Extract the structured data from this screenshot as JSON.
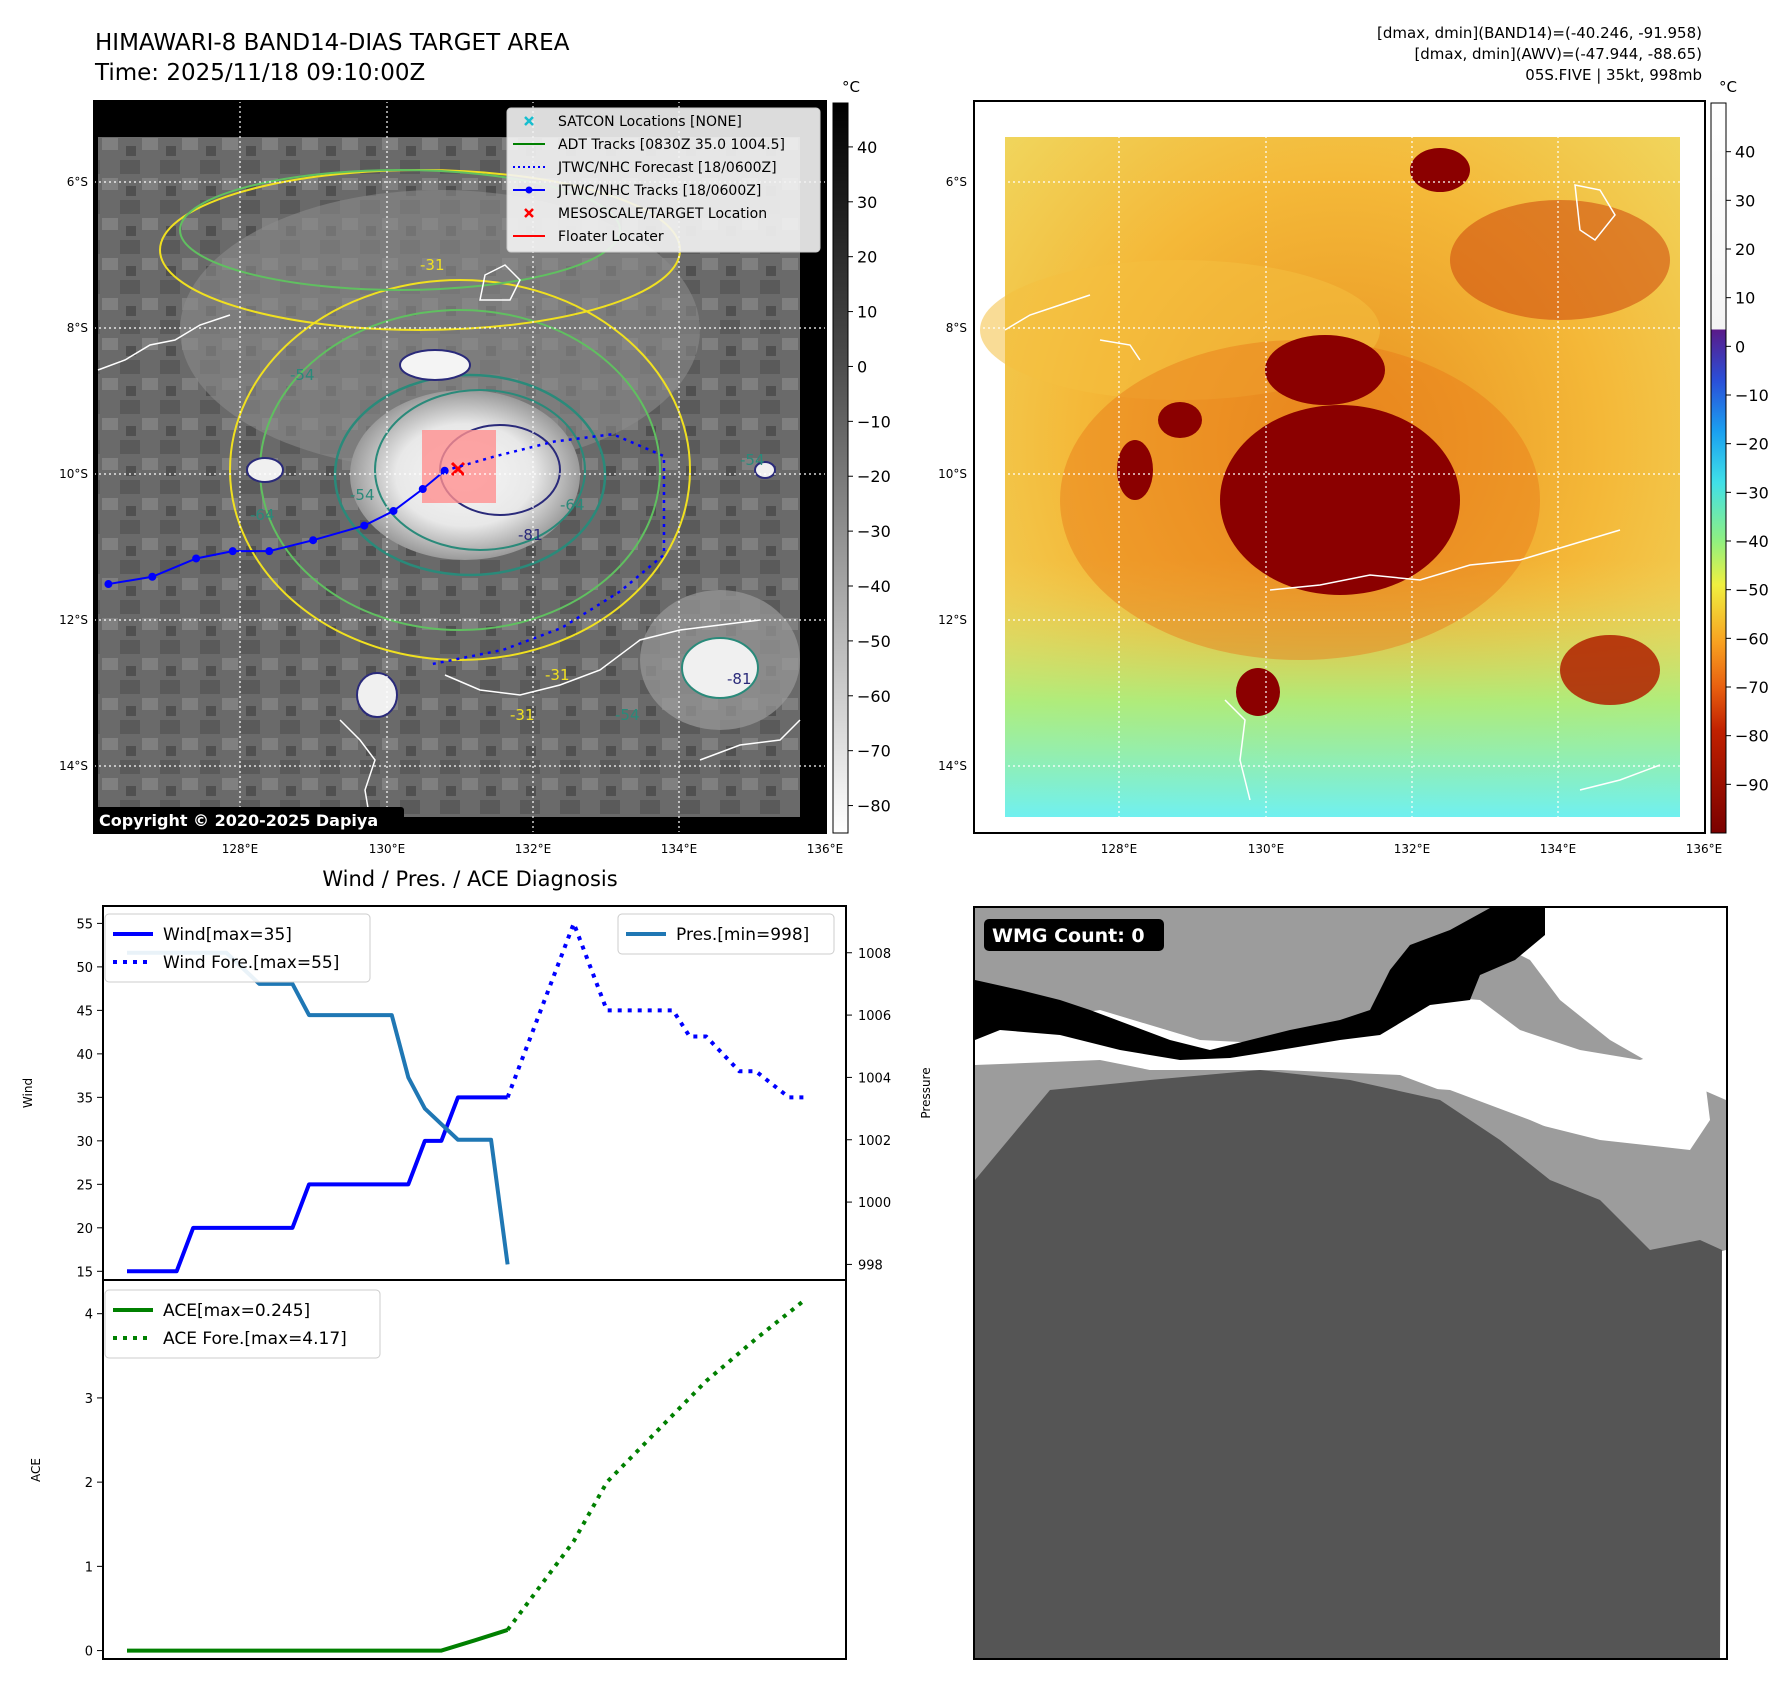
{
  "header": {
    "title": "HIMAWARI-8 BAND14-DIAS TARGET AREA",
    "time": "Time: 2025/11/18 09:10:00Z",
    "stats_band14": "[dmax, dmin](BAND14)=(-40.246, -91.958)",
    "stats_awv": "[dmax, dmin](AWV)=(-47.944, -88.65)",
    "storm_info": "05S.FIVE | 35kt, 998mb"
  },
  "map_axes": {
    "lon_ticks": [
      "128°E",
      "130°E",
      "132°E",
      "134°E",
      "136°E"
    ],
    "lat_ticks": [
      "6°S",
      "8°S",
      "10°S",
      "12°S",
      "14°S"
    ]
  },
  "left_map": {
    "copyright": "Copyright © 2020-2025 Dapiya",
    "legend": [
      {
        "label": "SATCON Locations [NONE]",
        "color": "#17becf",
        "icon": "x-marker-icon"
      },
      {
        "label": "ADT Tracks [0830Z 35.0 1004.5]",
        "color": "#008000",
        "icon": "solid-line-icon"
      },
      {
        "label": "JTWC/NHC Forecast [18/0600Z]",
        "color": "#0000ff",
        "icon": "dotted-line-icon"
      },
      {
        "label": "JTWC/NHC Tracks [18/0600Z]",
        "color": "#0000ff",
        "icon": "line-dot-icon"
      },
      {
        "label": "MESOSCALE/TARGET Location",
        "color": "#ff0000",
        "icon": "x-marker-icon"
      },
      {
        "label": "Floater Locater",
        "color": "#ff0000",
        "icon": "solid-line-icon"
      }
    ],
    "contour_labels": [
      "-54",
      "-81",
      "-64",
      "-31",
      "-54",
      "-31",
      "-54",
      "-31",
      "-54",
      "-81",
      "-64"
    ],
    "track_lonlat": [
      [
        126.2,
        -11.5
      ],
      [
        126.8,
        -11.4
      ],
      [
        127.4,
        -11.15
      ],
      [
        127.9,
        -11.05
      ],
      [
        128.4,
        -11.05
      ],
      [
        129.0,
        -10.9
      ],
      [
        129.7,
        -10.7
      ],
      [
        130.1,
        -10.5
      ],
      [
        130.5,
        -10.2
      ],
      [
        130.8,
        -9.95
      ]
    ],
    "forecast_lonlat": [
      [
        130.8,
        -9.95
      ],
      [
        131.5,
        -9.75
      ],
      [
        132.3,
        -9.55
      ],
      [
        133.1,
        -9.45
      ],
      [
        133.8,
        -9.75
      ],
      [
        133.8,
        -11.1
      ],
      [
        133.2,
        -11.6
      ],
      [
        132.4,
        -12.1
      ],
      [
        131.6,
        -12.4
      ],
      [
        130.6,
        -12.6
      ]
    ]
  },
  "colorbar_gray": {
    "unit": "°C",
    "ticks": [
      "40",
      "30",
      "20",
      "10",
      "0",
      "−10",
      "−20",
      "−30",
      "−40",
      "−50",
      "−60",
      "−70",
      "−80"
    ],
    "tick_values": [
      40,
      30,
      20,
      10,
      0,
      -10,
      -20,
      -30,
      -40,
      -50,
      -60,
      -70,
      -80
    ]
  },
  "colorbar_color": {
    "unit": "°C",
    "ticks": [
      "40",
      "30",
      "20",
      "10",
      "0",
      "−10",
      "−20",
      "−30",
      "−40",
      "−50",
      "−60",
      "−70",
      "−80",
      "−90"
    ],
    "tick_values": [
      40,
      30,
      20,
      10,
      0,
      -10,
      -20,
      -30,
      -40,
      -50,
      -60,
      -70,
      -80,
      -90
    ]
  },
  "wmg": {
    "label": "WMG Count: 0"
  },
  "chart_data": [
    {
      "type": "line",
      "title": "Wind / Pres. / ACE Diagnosis",
      "ylabel": "Wind",
      "ylim": [
        14,
        57
      ],
      "yticks": [
        15,
        20,
        25,
        30,
        35,
        40,
        45,
        50,
        55
      ],
      "series": [
        {
          "name": "Wind[max=35]",
          "style": "solid",
          "color": "#0000ff",
          "x": [
            0,
            3,
            4,
            10,
            11,
            17,
            18,
            19,
            20,
            21,
            22,
            23
          ],
          "values": [
            15,
            15,
            20,
            20,
            25,
            25,
            30,
            30,
            35,
            35,
            35,
            35
          ]
        },
        {
          "name": "Wind Fore.[max=55]",
          "style": "dotted",
          "color": "#0000ff",
          "x": [
            23,
            24,
            27,
            28,
            29,
            32,
            33,
            34,
            35,
            37,
            38,
            40,
            41
          ],
          "values": [
            35,
            40,
            55,
            50,
            45,
            45,
            45,
            42,
            42,
            38,
            38,
            35,
            35
          ]
        }
      ]
    },
    {
      "type": "line",
      "ylabel": "Pressure",
      "ylim": [
        997.5,
        1009.5
      ],
      "yticks": [
        998,
        1000,
        1002,
        1004,
        1006,
        1008
      ],
      "series": [
        {
          "name": "Pres.[min=998]",
          "style": "solid",
          "color": "#1f77b4",
          "x": [
            0,
            6,
            8,
            10,
            11,
            16,
            17,
            18,
            19,
            20,
            21,
            22,
            23
          ],
          "values": [
            1008,
            1008,
            1007,
            1007,
            1006,
            1006,
            1004,
            1003,
            1002.5,
            1002,
            1002,
            1002,
            998
          ]
        }
      ]
    },
    {
      "type": "line",
      "ylabel": "ACE",
      "ylim": [
        -0.1,
        4.4
      ],
      "yticks": [
        0,
        1,
        2,
        3,
        4
      ],
      "series": [
        {
          "name": "ACE[max=0.245]",
          "style": "solid",
          "color": "#008000",
          "x": [
            0,
            19,
            21,
            23
          ],
          "values": [
            0,
            0,
            0.12,
            0.245
          ]
        },
        {
          "name": "ACE Fore.[max=4.17]",
          "style": "dotted",
          "color": "#008000",
          "x": [
            23,
            27,
            29,
            32,
            35,
            38,
            41
          ],
          "values": [
            0.245,
            1.3,
            2.0,
            2.6,
            3.2,
            3.7,
            4.17
          ]
        }
      ]
    }
  ]
}
